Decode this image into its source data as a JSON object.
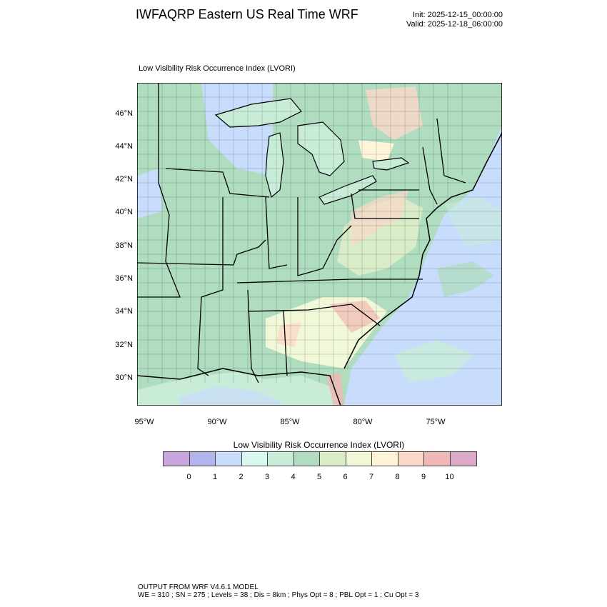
{
  "header": {
    "title": "IWFAQRP Eastern US Real Time WRF",
    "init": "Init: 2025-12-15_00:00:00",
    "valid": "Valid: 2025-12-18_06:00:00"
  },
  "plot": {
    "subtitle": "Low Visibility Risk Occurrence Index   (LVORI)",
    "lat_labels": [
      "46°N",
      "44°N",
      "42°N",
      "40°N",
      "38°N",
      "36°N",
      "34°N",
      "32°N",
      "30°N"
    ],
    "lon_labels": [
      "95°W",
      "90°W",
      "85°W",
      "80°W",
      "75°W"
    ]
  },
  "colorbar": {
    "title": "Low Visibility Risk Occurrence Index  (LVORI)",
    "labels": [
      "0",
      "1",
      "2",
      "3",
      "4",
      "5",
      "6",
      "7",
      "8",
      "9",
      "10"
    ],
    "colors": [
      "#c8a8dc",
      "#b4b4ec",
      "#c8dcfc",
      "#d8f8f0",
      "#c8ecd8",
      "#b0dcc0",
      "#d8ecc8",
      "#f0f8d8",
      "#fff4d8",
      "#fcd8c8",
      "#f0b8b4",
      "#dcaac8"
    ]
  },
  "footer": {
    "line1": "OUTPUT FROM WRF V4.6.1 MODEL",
    "line2": "WE = 310 ; SN = 275 ; Levels = 38 ; Dis = 8km ; Phys Opt = 8 ; PBL Opt = 1 ; Cu Opt = 3"
  }
}
